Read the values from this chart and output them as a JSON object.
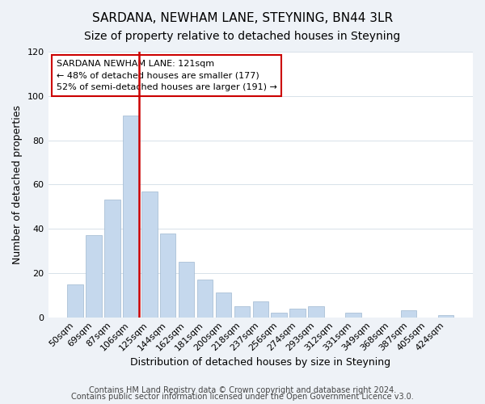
{
  "title": "SARDANA, NEWHAM LANE, STEYNING, BN44 3LR",
  "subtitle": "Size of property relative to detached houses in Steyning",
  "xlabel": "Distribution of detached houses by size in Steyning",
  "ylabel": "Number of detached properties",
  "categories": [
    "50sqm",
    "69sqm",
    "87sqm",
    "106sqm",
    "125sqm",
    "144sqm",
    "162sqm",
    "181sqm",
    "200sqm",
    "218sqm",
    "237sqm",
    "256sqm",
    "274sqm",
    "293sqm",
    "312sqm",
    "331sqm",
    "349sqm",
    "368sqm",
    "387sqm",
    "405sqm",
    "424sqm"
  ],
  "values": [
    15,
    37,
    53,
    91,
    57,
    38,
    25,
    17,
    11,
    5,
    7,
    2,
    4,
    5,
    0,
    2,
    0,
    0,
    3,
    0,
    1
  ],
  "bar_color": "#c5d8ed",
  "bar_edge_color": "#a0b8d0",
  "vline_x": 4,
  "vline_color": "#cc0000",
  "ylim": [
    0,
    120
  ],
  "yticks": [
    0,
    20,
    40,
    60,
    80,
    100,
    120
  ],
  "annotation_title": "SARDANA NEWHAM LANE: 121sqm",
  "annotation_line1": "← 48% of detached houses are smaller (177)",
  "annotation_line2": "52% of semi-detached houses are larger (191) →",
  "annotation_box_color": "#ffffff",
  "annotation_box_edge": "#cc0000",
  "footer1": "Contains HM Land Registry data © Crown copyright and database right 2024.",
  "footer2": "Contains public sector information licensed under the Open Government Licence v3.0.",
  "background_color": "#eef2f7",
  "plot_bg_color": "#ffffff",
  "title_fontsize": 11,
  "subtitle_fontsize": 10,
  "axis_label_fontsize": 9,
  "tick_fontsize": 8,
  "footer_fontsize": 7
}
